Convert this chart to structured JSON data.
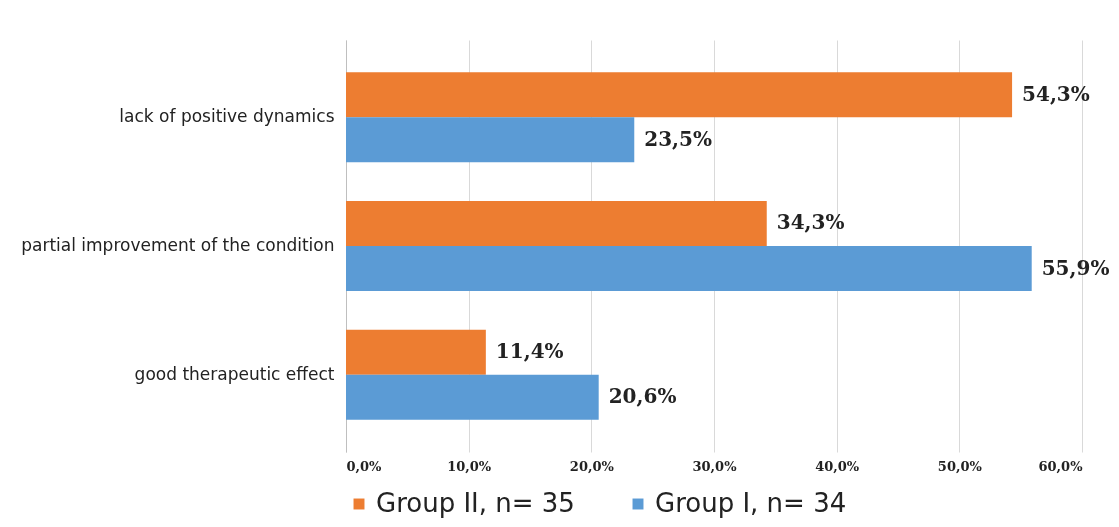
{
  "chart_data": {
    "type": "bar",
    "orientation": "horizontal",
    "categories": [
      "lack of positive dynamics",
      "partial improvement of the condition",
      "good therapeutic effect"
    ],
    "series": [
      {
        "name": "Group II, n= 35",
        "color": "#ed7d31",
        "values": [
          54.3,
          34.3,
          11.4
        ],
        "value_labels": [
          "54,3%",
          "34,3%",
          "11,4%"
        ]
      },
      {
        "name": "Group I, n= 34",
        "color": "#5b9bd5",
        "values": [
          23.5,
          55.9,
          20.6
        ],
        "value_labels": [
          "23,5%",
          "55,9%",
          "20,6%"
        ]
      }
    ],
    "xlim": [
      0,
      60
    ],
    "xticks": [
      {
        "value": 0,
        "label": "0,0%"
      },
      {
        "value": 10,
        "label": "10,0%"
      },
      {
        "value": 20,
        "label": "20,0%"
      },
      {
        "value": 30,
        "label": "30,0%"
      },
      {
        "value": 40,
        "label": "40,0%"
      },
      {
        "value": 50,
        "label": "50,0%"
      },
      {
        "value": 60,
        "label": "60,0%"
      }
    ],
    "grid": "x",
    "legend": "bottom"
  }
}
